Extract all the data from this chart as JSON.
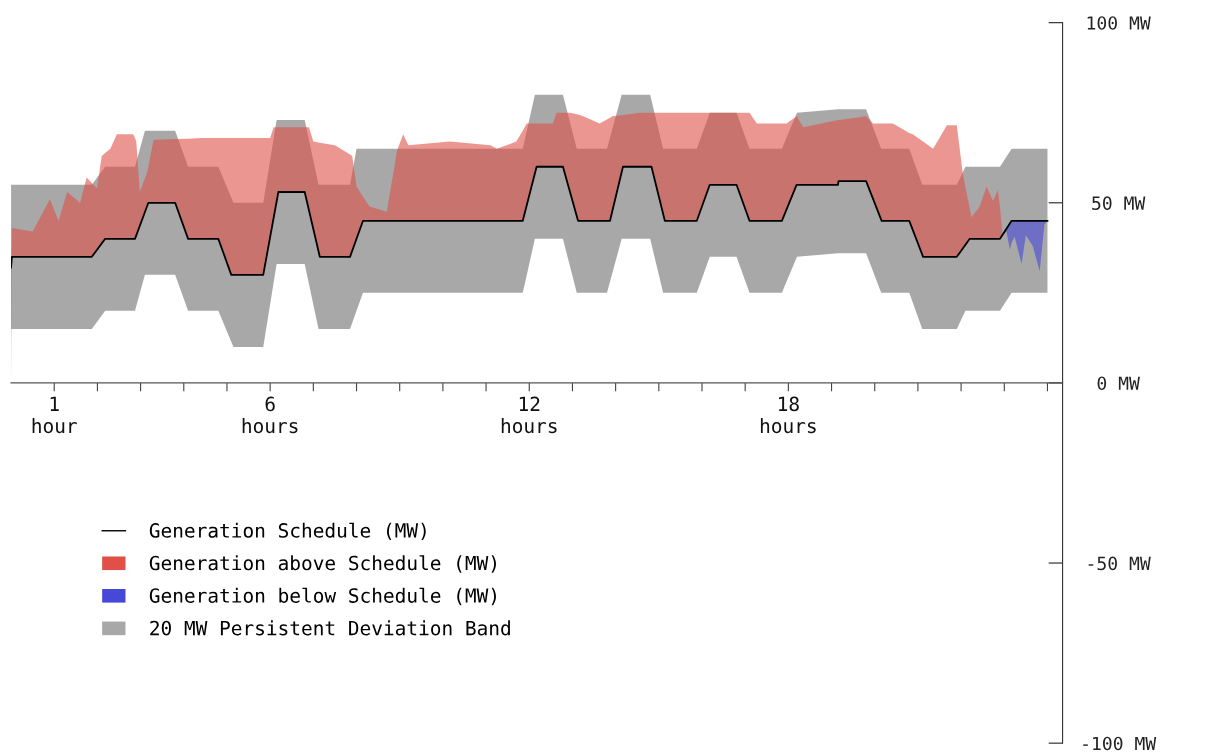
{
  "chart_data": {
    "type": "line",
    "xlim": [
      0,
      24.35
    ],
    "ylim": [
      -100,
      100
    ],
    "xticks": [
      {
        "value": 1,
        "label": "1\nhour"
      },
      {
        "value": 2,
        "label": null
      },
      {
        "value": 3,
        "label": null
      },
      {
        "value": 4,
        "label": null
      },
      {
        "value": 5,
        "label": null
      },
      {
        "value": 6,
        "label": "6\nhours"
      },
      {
        "value": 7,
        "label": null
      },
      {
        "value": 8,
        "label": null
      },
      {
        "value": 9,
        "label": null
      },
      {
        "value": 10,
        "label": null
      },
      {
        "value": 11,
        "label": null
      },
      {
        "value": 12,
        "label": "12\nhours"
      },
      {
        "value": 13,
        "label": null
      },
      {
        "value": 14,
        "label": null
      },
      {
        "value": 15,
        "label": null
      },
      {
        "value": 16,
        "label": null
      },
      {
        "value": 17,
        "label": null
      },
      {
        "value": 18,
        "label": "18\nhours"
      },
      {
        "value": 19,
        "label": null
      },
      {
        "value": 20,
        "label": null
      },
      {
        "value": 21,
        "label": null
      },
      {
        "value": 22,
        "label": null
      },
      {
        "value": 23,
        "label": null
      },
      {
        "value": 24,
        "label": null
      }
    ],
    "yticks": [
      {
        "value": -100,
        "label": "-100 MW"
      },
      {
        "value": -50,
        "label": "-50 MW"
      },
      {
        "value": 0,
        "label": "0 MW"
      },
      {
        "value": 50,
        "label": "50 MW"
      },
      {
        "value": 100,
        "label": "100 MW"
      }
    ],
    "grid": false,
    "legend": "bottom left",
    "series": [
      {
        "name": "Generation Schedule (MW)",
        "color": "#000000",
        "x": [
          0,
          0.02,
          1.87,
          2.18,
          2.87,
          3.18,
          3.8,
          4.1,
          4.8,
          5.1,
          5.84,
          6.19,
          6.8,
          7.15,
          7.85,
          8.15,
          11.85,
          12.17,
          12.78,
          13.13,
          13.87,
          14.17,
          14.83,
          15.14,
          15.88,
          16.18,
          16.8,
          17.1,
          17.85,
          18.19,
          19.15,
          19.16,
          19.8,
          20.16,
          20.8,
          21.12,
          21.9,
          22.2,
          22.9,
          23.17,
          24
        ],
        "values": [
          32,
          35,
          35,
          40,
          40,
          50,
          50,
          40,
          40,
          30,
          30,
          53,
          53,
          35,
          35,
          45,
          45,
          60,
          60,
          45,
          45,
          60,
          60,
          45,
          45,
          55,
          55,
          45,
          45,
          55,
          55,
          56,
          56,
          45,
          45,
          35,
          35,
          40,
          40,
          45,
          45
        ]
      },
      {
        "name": "Generation above Schedule (MW)",
        "type": "area",
        "color": "#e05048",
        "x": [
          0,
          0.02,
          0.5,
          0.9,
          1.1,
          1.3,
          1.6,
          1.75,
          1.87,
          1.99,
          2.1,
          2.18,
          2.3,
          2.45,
          2.83,
          2.87,
          2.9,
          2.98,
          3.14,
          3.18,
          3.3,
          3.8,
          4.1,
          4.4,
          4.8,
          5.1,
          5.84,
          6.0,
          6.08,
          6.19,
          6.8,
          6.9,
          7.0,
          7.15,
          7.5,
          7.85,
          7.9,
          8.0,
          8.15,
          8.3,
          8.7,
          8.94,
          9.08,
          9.2,
          10.16,
          11.1,
          11.25,
          11.7,
          11.85,
          11.94,
          12.17,
          12.55,
          12.63,
          12.78,
          12.94,
          13.13,
          13.25,
          13.63,
          13.87,
          13.93,
          14.17,
          14.56,
          14.83,
          15.14,
          15.88,
          16.18,
          16.8,
          17.1,
          17.27,
          17.85,
          17.96,
          18.19,
          18.35,
          19.15,
          19.16,
          19.19,
          19.8,
          19.96,
          20.16,
          20.42,
          20.8,
          20.88,
          21.12,
          21.35,
          21.5,
          21.67,
          21.9,
          22.04,
          22.2,
          22.24,
          22.43,
          22.59,
          22.74,
          22.85,
          22.9,
          22.96
        ],
        "values": [
          null,
          null,
          null,
          null,
          null,
          null,
          null,
          null,
          null,
          null,
          null,
          null,
          null,
          null,
          null,
          null,
          null,
          null,
          null,
          null,
          null,
          null,
          null,
          null,
          null,
          null,
          null,
          null,
          null,
          null,
          null,
          null,
          null,
          null,
          null,
          null,
          null,
          null,
          null,
          null,
          null,
          null,
          null,
          null,
          null,
          null,
          null,
          null,
          null,
          null,
          null,
          null,
          null,
          null,
          null,
          null,
          null,
          null,
          null,
          null,
          null,
          null,
          null,
          null,
          null,
          null,
          null,
          null,
          null,
          null,
          null,
          null,
          null,
          null,
          null,
          null,
          null,
          null,
          null,
          null,
          null,
          null,
          null,
          null,
          null,
          null,
          null,
          null,
          null,
          null,
          null,
          null,
          null,
          null,
          null,
          null
        ],
        "upper": [
          32,
          43,
          42,
          51,
          45,
          53,
          50,
          57,
          55.5,
          54,
          63,
          63.8,
          65,
          69,
          69,
          68,
          67,
          53,
          58,
          60,
          67.5,
          67.7,
          67.8,
          68,
          68,
          68,
          68,
          68,
          71,
          71,
          71,
          71,
          67,
          66.7,
          66,
          63.4,
          63,
          54.5,
          51.7,
          49,
          47.5,
          64.5,
          69,
          66,
          67,
          66,
          65,
          67,
          70,
          72,
          72,
          72,
          75,
          75,
          75,
          74.5,
          74,
          72,
          73.6,
          74,
          74.4,
          75,
          75,
          75,
          75,
          75,
          75,
          75,
          72,
          72,
          72,
          74,
          71,
          73,
          73,
          73,
          74,
          72,
          72,
          72,
          69.4,
          69,
          67,
          65,
          68,
          71.5,
          71.5,
          58,
          48.4,
          46,
          49,
          54.5,
          50.5,
          53.5,
          49,
          41
        ],
        "lower": [
          0,
          35,
          35,
          35,
          35,
          35,
          35,
          35,
          35,
          36.9,
          38.7,
          40,
          40,
          40,
          40,
          40,
          41,
          43.5,
          48.7,
          50,
          50,
          50,
          40,
          40,
          40,
          30,
          30,
          40.5,
          45.8,
          53,
          53,
          47.9,
          42.7,
          35,
          35,
          35,
          36.7,
          40,
          45,
          45,
          45,
          45,
          45,
          45,
          45,
          45,
          45,
          45,
          45,
          49.2,
          60,
          60,
          60,
          60,
          53.1,
          45,
          45,
          45,
          45,
          48,
          60,
          60,
          60,
          45,
          45,
          55,
          55,
          45,
          45,
          45,
          48.2,
          55,
          55,
          55,
          56,
          56,
          56,
          51.1,
          45,
          45,
          45,
          42.5,
          35,
          35,
          35,
          35,
          35,
          37.3,
          40,
          40,
          40,
          40,
          40,
          40,
          40,
          41
        ]
      },
      {
        "name": "Generation below Schedule (MW)",
        "type": "area",
        "color": "#4848d8",
        "x": [
          22.96,
          23.05,
          23.13,
          23.17,
          23.24,
          23.4,
          23.5,
          23.66,
          23.82,
          23.93,
          24
        ],
        "values": [
          null,
          null,
          null,
          null,
          null,
          null,
          null,
          null,
          null,
          null,
          null
        ],
        "lower": [
          41,
          42,
          37,
          39,
          40.6,
          33,
          41,
          38,
          31,
          44,
          45
        ],
        "upper": [
          41,
          42.8,
          44.3,
          45,
          45,
          45,
          45,
          45,
          45,
          45,
          45
        ]
      },
      {
        "name": "20 MW Persistent Deviation Band",
        "type": "area",
        "color": "#a8a8a8",
        "x": [
          0,
          1.87,
          2.18,
          2.87,
          3.1,
          3.8,
          4.1,
          4.8,
          5.15,
          5.84,
          6.15,
          6.8,
          7.12,
          7.85,
          8.0,
          8.15,
          11.85,
          12.13,
          12.78,
          13.1,
          13.8,
          14.14,
          14.8,
          15.1,
          15.88,
          16.18,
          16.8,
          17.1,
          17.85,
          18.2,
          19.15,
          19.8,
          20.15,
          20.8,
          21.1,
          21.9,
          22.1,
          22.9,
          23.17,
          24
        ],
        "values": [
          null,
          null,
          null,
          null,
          null,
          null,
          null,
          null,
          null,
          null,
          null,
          null,
          null,
          null,
          null,
          null,
          null,
          null,
          null,
          null,
          null,
          null,
          null,
          null,
          null,
          null,
          null,
          null,
          null,
          null,
          null,
          null,
          null,
          null,
          null,
          null,
          null,
          null,
          null,
          null
        ],
        "upper": [
          55,
          55,
          60,
          60,
          70,
          70,
          60,
          60,
          50,
          50,
          73,
          73,
          55,
          55,
          65,
          65,
          65,
          80,
          80,
          65,
          65,
          80,
          80,
          65,
          65,
          75,
          75,
          65,
          65,
          75,
          76,
          76,
          65,
          65,
          55,
          55,
          60,
          60,
          65,
          65
        ],
        "lower": [
          15,
          15,
          20,
          20,
          30,
          30,
          20,
          20,
          10,
          10,
          33,
          33,
          15,
          15,
          20,
          25,
          25,
          40,
          40,
          25,
          25,
          40,
          40,
          25,
          25,
          35,
          35,
          25,
          25,
          35,
          36,
          36,
          25,
          25,
          15,
          15,
          20,
          20,
          25,
          25
        ]
      }
    ]
  }
}
